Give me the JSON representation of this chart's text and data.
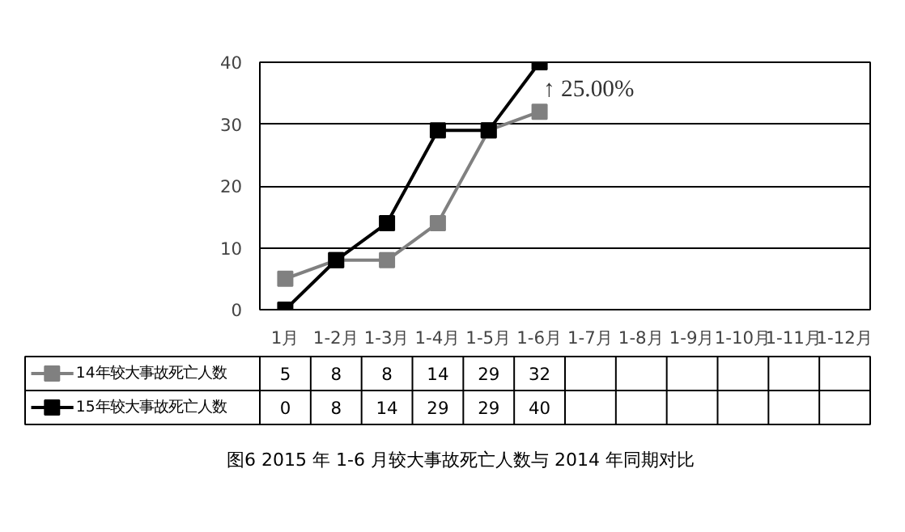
{
  "chart_data": {
    "type": "line",
    "categories": [
      "1月",
      "1-2月",
      "1-3月",
      "1-4月",
      "1-5月",
      "1-6月",
      "1-7月",
      "1-8月",
      "1-9月",
      "1-10月",
      "1-11月",
      "1-12月"
    ],
    "series": [
      {
        "name": "14年较大事故死亡人数",
        "color": "#808080",
        "values": [
          5,
          8,
          8,
          14,
          29,
          32,
          null,
          null,
          null,
          null,
          null,
          null
        ]
      },
      {
        "name": "15年较大事故死亡人数",
        "color": "#000000",
        "values": [
          0,
          8,
          14,
          29,
          29,
          40,
          null,
          null,
          null,
          null,
          null,
          null
        ]
      }
    ],
    "ylim": [
      0,
      40
    ],
    "yticks": [
      0,
      10,
      20,
      30,
      40
    ],
    "grid": "y",
    "marker": "square",
    "line_style": "solid",
    "data_labels": true,
    "legend": "bottom",
    "annotations": [
      "↑ 25.00%",
      "图6  2015 年 1-6 月较大事故死亡人数与 2014 年同期对比"
    ]
  }
}
